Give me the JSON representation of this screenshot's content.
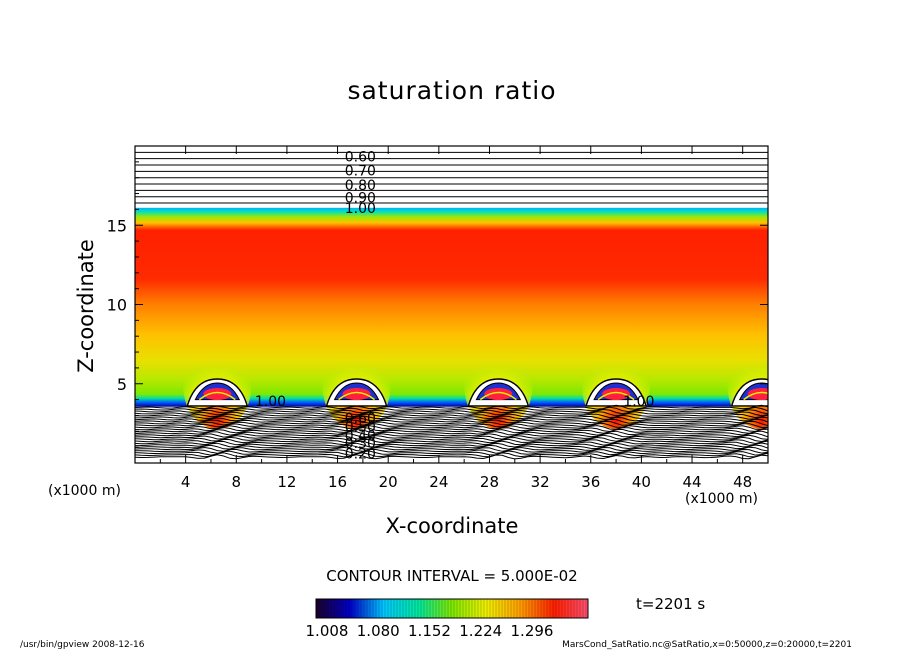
{
  "chart_data": {
    "type": "heatmap",
    "title": "saturation ratio",
    "xlabel": "X-coordinate",
    "ylabel": "Z-coordinate",
    "x_unit_left": "(x1000 m)",
    "x_unit_right": "(x1000 m)",
    "xlim": [
      0,
      50
    ],
    "ylim": [
      0,
      20
    ],
    "x_ticks": [
      4,
      8,
      12,
      16,
      20,
      24,
      28,
      32,
      36,
      40,
      44,
      48
    ],
    "y_ticks": [
      5,
      10,
      15
    ],
    "colorscale": {
      "labels": [
        "1.008",
        "1.080",
        "1.152",
        "1.224",
        "1.296"
      ],
      "min": 1.008,
      "max": 1.296,
      "colors": [
        "#1a0028",
        "#0000c8",
        "#00c8ff",
        "#00e8a0",
        "#7fe800",
        "#f0f000",
        "#ffa000",
        "#ff2000",
        "#ff5070"
      ]
    },
    "contour_interval_text": "CONTOUR INTERVAL = 5.000E-02",
    "contour_labels_top": [
      "0.60",
      "0.70",
      "0.80",
      "0.90",
      "1.00"
    ],
    "contour_labels_bottom": [
      "0.60",
      "0.50",
      "0.40",
      "0.30",
      "0.20"
    ],
    "contour_label_cloud": "1.00",
    "cloud_centers_x": [
      6.5,
      17.5,
      28.7,
      38,
      49.5
    ],
    "time_text": "t=2201 s",
    "footer_left": "/usr/bin/gpview  2008-12-16",
    "footer_right": "MarsCond_SatRatio.nc@SatRatio,x=0:50000,z=0:20000,t=2201"
  }
}
